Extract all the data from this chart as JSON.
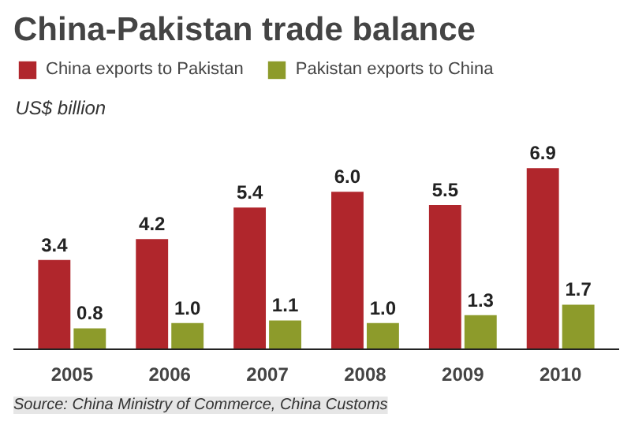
{
  "chart_data": {
    "type": "bar",
    "title": "China-Pakistan trade balance",
    "ylabel": "US$ billion",
    "categories": [
      "2005",
      "2006",
      "2007",
      "2008",
      "2009",
      "2010"
    ],
    "series": [
      {
        "name": "China exports to Pakistan",
        "color": "#b0262c",
        "values": [
          3.4,
          4.2,
          5.4,
          6.0,
          5.5,
          6.9
        ],
        "value_labels": [
          "3.4",
          "4.2",
          "5.4",
          "6.0",
          "5.5",
          "6.9"
        ]
      },
      {
        "name": "Pakistan exports to China",
        "color": "#8d9b2b",
        "values": [
          0.8,
          1.0,
          1.1,
          1.0,
          1.3,
          1.7
        ],
        "value_labels": [
          "0.8",
          "1.0",
          "1.1",
          "1.0",
          "1.3",
          "1.7"
        ]
      }
    ],
    "legend": "top",
    "annotations": [
      "Source: China Ministry of Commerce, China Customs"
    ]
  }
}
